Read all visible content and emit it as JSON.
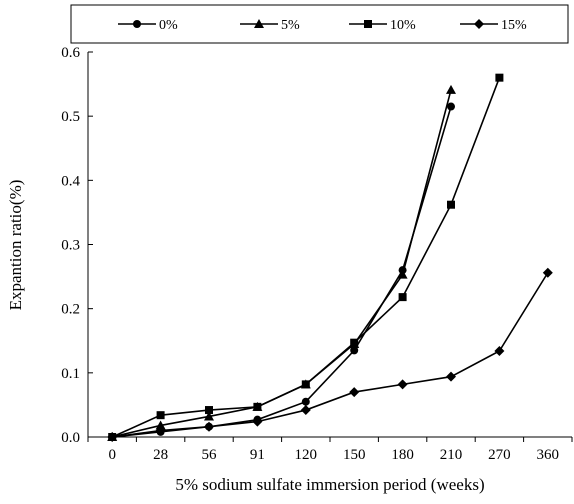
{
  "chart_data": {
    "type": "line",
    "xlabel": "5% sodium sulfate immersion period (weeks)",
    "ylabel": "Expantion ratio(%)",
    "categories": [
      "0",
      "28",
      "56",
      "91",
      "120",
      "150",
      "180",
      "210",
      "270",
      "360"
    ],
    "ylim": [
      0.0,
      0.6
    ],
    "yticks": [
      "0.0",
      "0.1",
      "0.2",
      "0.3",
      "0.4",
      "0.5",
      "0.6"
    ],
    "legend_position": "top",
    "grid": false,
    "series": [
      {
        "name": "0%",
        "marker": "circle",
        "values": [
          0.0,
          0.008,
          0.016,
          0.027,
          0.055,
          0.135,
          0.26,
          0.515,
          null,
          null
        ]
      },
      {
        "name": "5%",
        "marker": "triangle",
        "values": [
          0.0,
          0.018,
          0.032,
          0.047,
          0.082,
          0.145,
          0.253,
          0.541,
          null,
          null
        ]
      },
      {
        "name": "10%",
        "marker": "square",
        "values": [
          0.0,
          0.034,
          0.042,
          0.047,
          0.082,
          0.147,
          0.218,
          0.362,
          0.56,
          null
        ]
      },
      {
        "name": "15%",
        "marker": "diamond",
        "values": [
          0.0,
          0.01,
          0.016,
          0.024,
          0.042,
          0.07,
          0.082,
          0.094,
          0.134,
          0.256
        ]
      }
    ]
  }
}
